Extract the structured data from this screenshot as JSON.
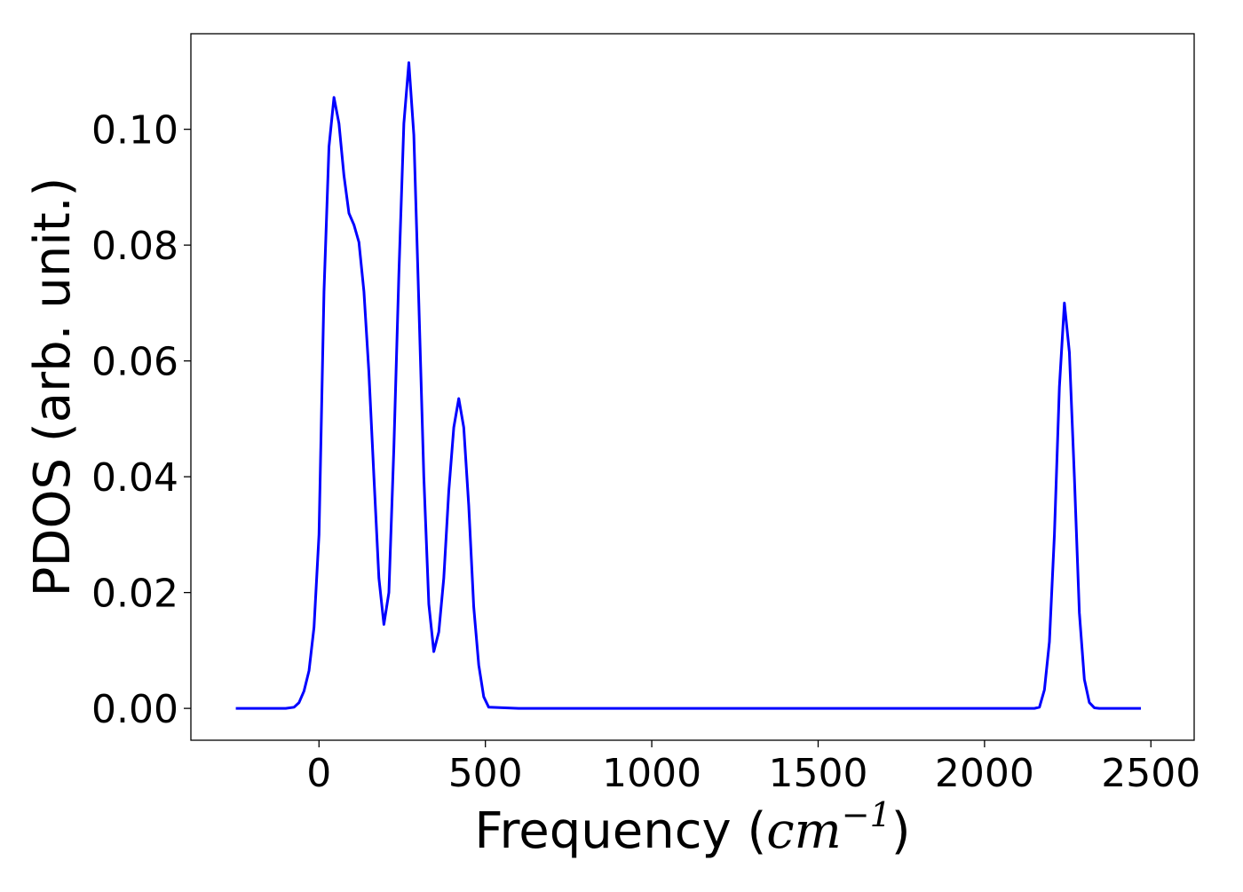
{
  "chart_data": {
    "type": "line",
    "xlabel": "Frequency (cm⁻¹)",
    "xlabel_prefix": "Frequency (",
    "xlabel_unit": "cm",
    "xlabel_exponent": "−1",
    "xlabel_suffix": ")",
    "ylabel": "PDOS (arb. unit.)",
    "xlim": [
      -385,
      2630
    ],
    "ylim": [
      -0.0055,
      0.1165
    ],
    "x_ticks": [
      0,
      500,
      1000,
      1500,
      2000,
      2500
    ],
    "x_tick_labels": [
      "0",
      "500",
      "1000",
      "1500",
      "2000",
      "2500"
    ],
    "y_ticks": [
      0.0,
      0.02,
      0.04,
      0.06,
      0.08,
      0.1
    ],
    "y_tick_labels": [
      "0.00",
      "0.02",
      "0.04",
      "0.06",
      "0.08",
      "0.10"
    ],
    "grid": false,
    "legend": "none",
    "series": [
      {
        "color": "#0000ff",
        "x": [
          -250,
          -100,
          -75,
          -60,
          -45,
          -30,
          -15,
          0,
          15,
          30,
          45,
          60,
          75,
          90,
          105,
          120,
          135,
          150,
          165,
          180,
          195,
          210,
          225,
          240,
          255,
          270,
          285,
          300,
          315,
          330,
          345,
          360,
          375,
          390,
          405,
          420,
          435,
          450,
          465,
          480,
          495,
          510,
          600,
          1000,
          1500,
          2000,
          2150,
          2165,
          2180,
          2195,
          2210,
          2225,
          2240,
          2255,
          2270,
          2285,
          2300,
          2315,
          2330,
          2345,
          2360,
          2470
        ],
        "y": [
          0.0,
          0.0,
          0.0002,
          0.001,
          0.003,
          0.0065,
          0.014,
          0.03,
          0.072,
          0.097,
          0.1055,
          0.101,
          0.092,
          0.0855,
          0.0835,
          0.0805,
          0.072,
          0.058,
          0.04,
          0.0225,
          0.0145,
          0.02,
          0.045,
          0.075,
          0.101,
          0.1115,
          0.099,
          0.07,
          0.04,
          0.018,
          0.0098,
          0.0132,
          0.0225,
          0.0375,
          0.0485,
          0.0535,
          0.0485,
          0.035,
          0.0175,
          0.0075,
          0.002,
          0.0002,
          0.0,
          0.0,
          0.0,
          0.0,
          0.0,
          0.0002,
          0.0032,
          0.0115,
          0.03,
          0.0555,
          0.07,
          0.0615,
          0.04,
          0.0165,
          0.005,
          0.001,
          0.0001,
          0.0,
          0.0,
          0.0
        ]
      }
    ]
  }
}
